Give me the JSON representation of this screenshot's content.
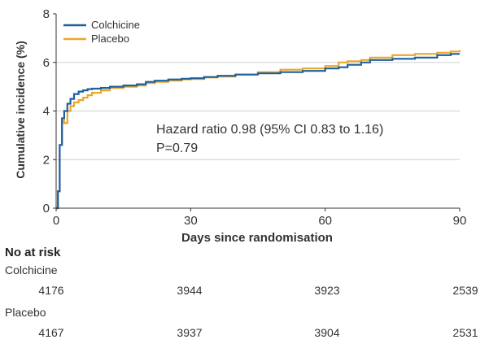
{
  "chart_data": {
    "type": "line",
    "title": "",
    "xlabel": "Days since randomisation",
    "ylabel": "Cumulative incidence (%)",
    "xlim": [
      0,
      90
    ],
    "ylim": [
      0,
      8
    ],
    "xticks": [
      "0",
      "30",
      "60",
      "90"
    ],
    "yticks": [
      "0",
      "2",
      "4",
      "6",
      "8"
    ],
    "legend_position": "top-left",
    "annotation": {
      "line1": "Hazard ratio 0.98 (95% CI 0.83 to 1.16)",
      "line2": "P=0.79"
    },
    "series": [
      {
        "name": "Colchicine",
        "color": "#1f5f9e",
        "x": [
          0,
          0.4,
          0.8,
          1.3,
          1.8,
          2.5,
          3.2,
          4,
          5,
          6,
          7,
          8,
          10,
          12,
          15,
          18,
          20,
          22,
          25,
          28,
          30,
          33,
          36,
          40,
          45,
          50,
          55,
          60,
          63,
          65,
          68,
          70,
          75,
          80,
          85,
          88,
          90
        ],
        "y": [
          0,
          0.7,
          2.6,
          3.7,
          4.0,
          4.3,
          4.5,
          4.7,
          4.8,
          4.85,
          4.9,
          4.92,
          4.95,
          5.0,
          5.05,
          5.1,
          5.2,
          5.25,
          5.3,
          5.33,
          5.35,
          5.4,
          5.45,
          5.5,
          5.55,
          5.6,
          5.65,
          5.75,
          5.8,
          5.9,
          6.0,
          6.1,
          6.15,
          6.2,
          6.3,
          6.35,
          6.35
        ]
      },
      {
        "name": "Placebo",
        "color": "#e8a82a",
        "x": [
          0,
          0.4,
          0.8,
          1.3,
          1.8,
          2.5,
          3.2,
          4,
          5,
          6,
          7,
          8,
          10,
          12,
          15,
          18,
          20,
          22,
          25,
          28,
          30,
          33,
          36,
          40,
          45,
          50,
          55,
          60,
          63,
          65,
          68,
          70,
          75,
          80,
          85,
          88,
          90
        ],
        "y": [
          0,
          0.7,
          2.6,
          3.6,
          3.5,
          4.0,
          4.2,
          4.35,
          4.45,
          4.55,
          4.65,
          4.75,
          4.85,
          4.95,
          5.0,
          5.05,
          5.15,
          5.2,
          5.25,
          5.3,
          5.32,
          5.38,
          5.42,
          5.5,
          5.6,
          5.7,
          5.75,
          5.85,
          6.0,
          6.05,
          6.1,
          6.2,
          6.3,
          6.35,
          6.4,
          6.45,
          6.5
        ]
      }
    ]
  },
  "risk_table": {
    "title": "No at risk",
    "groups": [
      {
        "name": "Colchicine",
        "values": [
          "4176",
          "3944",
          "3923",
          "2539"
        ]
      },
      {
        "name": "Placebo",
        "values": [
          "4167",
          "3937",
          "3904",
          "2531"
        ]
      }
    ]
  }
}
